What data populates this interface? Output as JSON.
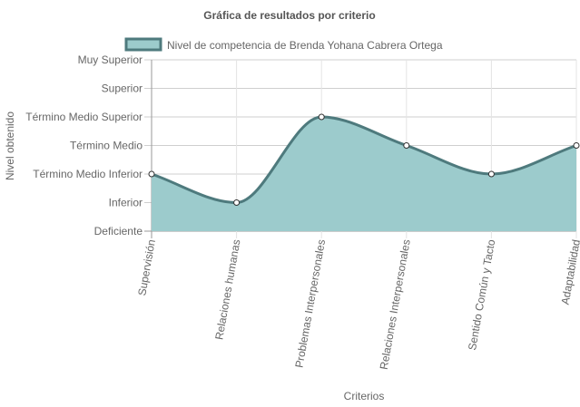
{
  "chart_data": {
    "type": "area",
    "title": "Gráfica de resultados por criterio",
    "xlabel": "Criterios",
    "ylabel": "Nivel obtenido",
    "y_levels": [
      "Deficiente",
      "Inferior",
      "Término Medio Inferior",
      "Término Medio",
      "Término Medio Superior",
      "Superior",
      "Muy Superior"
    ],
    "ylim": [
      0,
      6
    ],
    "categories": [
      "Supervisión",
      "Relaciones humanas",
      "Problemas Interpersonales",
      "Relaciones Interpersonales",
      "Sentido Común y Tacto",
      "Adaptabilidad"
    ],
    "series": [
      {
        "name": "Nivel de competencia de Brenda Yohana Cabrera Ortega",
        "values": [
          2,
          1,
          4,
          3,
          2,
          3
        ],
        "level_labels": [
          "Término Medio Inferior",
          "Inferior",
          "Término Medio Superior",
          "Término Medio",
          "Término Medio Inferior",
          "Término Medio"
        ],
        "line_color": "#4e7a7d",
        "fill_color": "#9ccbcc"
      }
    ],
    "grid": true,
    "legend_position": "top-center"
  }
}
